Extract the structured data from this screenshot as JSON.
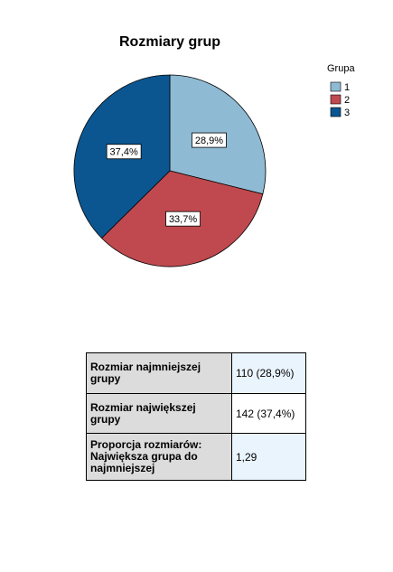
{
  "chart_data": {
    "type": "pie",
    "title": "Rozmiary grup",
    "legend_title": "Grupa",
    "categories": [
      "1",
      "2",
      "3"
    ],
    "values": [
      28.9,
      33.7,
      37.4
    ],
    "value_labels": [
      "28,9%",
      "33,7%",
      "37,4%"
    ],
    "colors": [
      "#8fbad3",
      "#c0494f",
      "#0b5690"
    ],
    "legend": "top-right"
  },
  "table": {
    "rows": [
      [
        "Rozmiar najmniejszej grupy",
        "110 (28,9%)"
      ],
      [
        "Rozmiar największej grupy",
        "142 (37,4%)"
      ],
      [
        "Proporcja rozmiarów: Największa grupa do najmniejszej",
        "1,29"
      ]
    ]
  }
}
